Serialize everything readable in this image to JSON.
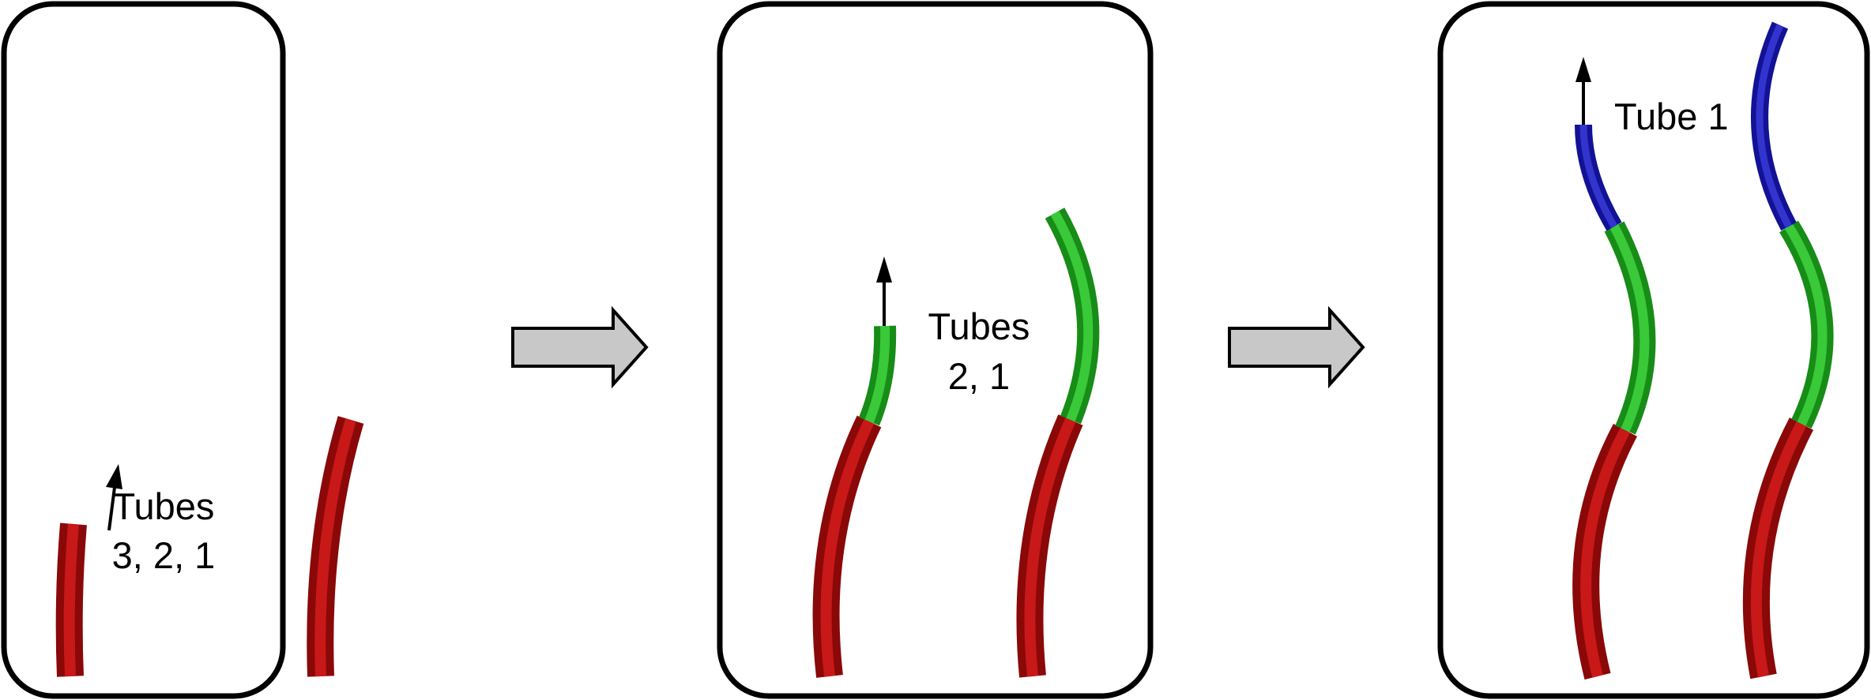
{
  "panels": [
    {
      "label_lines": [
        "Tubes",
        "3, 2, 1"
      ]
    },
    {
      "label_lines": [
        "Tubes",
        "2, 1"
      ]
    },
    {
      "label_lines": [
        "Tube 1"
      ]
    }
  ],
  "colors": {
    "tube_3": "#b30d0d",
    "tube_2": "#1fae1f",
    "tube_1": "#1a1ab5",
    "arrow_fill": "#c8c8c8",
    "frame": "#000000"
  }
}
